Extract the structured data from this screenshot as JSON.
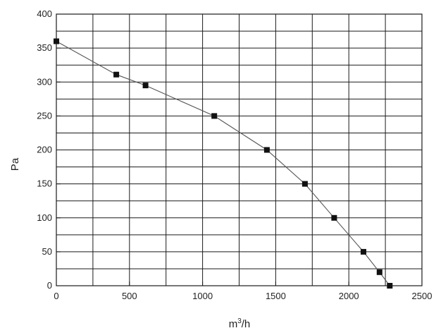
{
  "chart_data": {
    "type": "line",
    "title": "",
    "xlabel": "m",
    "xlabel_sup": "3",
    "xlabel_suffix": "/h",
    "ylabel": "Pa",
    "xlim": [
      0,
      2500
    ],
    "ylim": [
      0,
      400
    ],
    "x_major_ticks": [
      0,
      500,
      1000,
      1500,
      2000,
      2500
    ],
    "x_tick_labels": [
      "0",
      "500",
      "1000",
      "1500",
      "2000",
      "2500"
    ],
    "x_grid_lines": [
      250,
      500,
      750,
      1000,
      1250,
      1500,
      1750,
      2000,
      2250
    ],
    "y_major_ticks": [
      0,
      50,
      100,
      150,
      200,
      250,
      300,
      350,
      400
    ],
    "y_tick_labels": [
      "0",
      "50",
      "100",
      "150",
      "200",
      "250",
      "300",
      "350",
      "400"
    ],
    "y_grid_lines": [
      25,
      50,
      75,
      100,
      125,
      150,
      175,
      200,
      225,
      250,
      275,
      300,
      325,
      350,
      375
    ],
    "grid": true,
    "legend": "none",
    "series": [
      {
        "color": "#555555",
        "marker": "square",
        "x": [
          0,
          410,
          610,
          1080,
          1440,
          1700,
          1900,
          2100,
          2210,
          2280
        ],
        "y": [
          360,
          311,
          295,
          250,
          200,
          150,
          100,
          50,
          20,
          0
        ]
      }
    ],
    "colors": {
      "grid": "#1a1a1a",
      "line": "#555555",
      "marker": "#111111",
      "text": "#222222"
    }
  }
}
